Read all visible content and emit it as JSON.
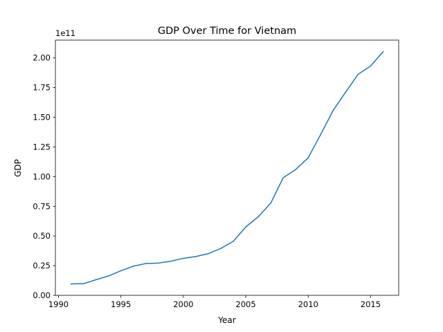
{
  "chart_data": {
    "type": "line",
    "title": "GDP Over Time for Vietnam",
    "xlabel": "Year",
    "ylabel": "GDP",
    "y_offset_label": "1e11",
    "xlim": [
      1989.75,
      2017.25
    ],
    "ylim": [
      0.0,
      2.15
    ],
    "y_units": "1e11",
    "xticks": [
      1990,
      1995,
      2000,
      2005,
      2010,
      2015
    ],
    "yticks": [
      0.0,
      0.25,
      0.5,
      0.75,
      1.0,
      1.25,
      1.5,
      1.75,
      2.0
    ],
    "xtick_labels": [
      "1990",
      "1995",
      "2000",
      "2005",
      "2010",
      "2015"
    ],
    "ytick_labels": [
      "0.00",
      "0.25",
      "0.50",
      "0.75",
      "1.00",
      "1.25",
      "1.50",
      "1.75",
      "2.00"
    ],
    "grid": false,
    "series": [
      {
        "color": "#1f77b4",
        "x": [
          1991,
          1992,
          1993,
          1994,
          1995,
          1996,
          1997,
          1998,
          1999,
          2000,
          2001,
          2002,
          2003,
          2004,
          2005,
          2006,
          2007,
          2008,
          2009,
          2010,
          2011,
          2012,
          2013,
          2014,
          2015,
          2016
        ],
        "y": [
          0.096,
          0.098,
          0.132,
          0.163,
          0.207,
          0.246,
          0.268,
          0.272,
          0.287,
          0.312,
          0.327,
          0.351,
          0.395,
          0.455,
          0.576,
          0.662,
          0.777,
          0.991,
          1.06,
          1.159,
          1.355,
          1.558,
          1.712,
          1.862,
          1.932,
          2.052
        ]
      }
    ]
  }
}
